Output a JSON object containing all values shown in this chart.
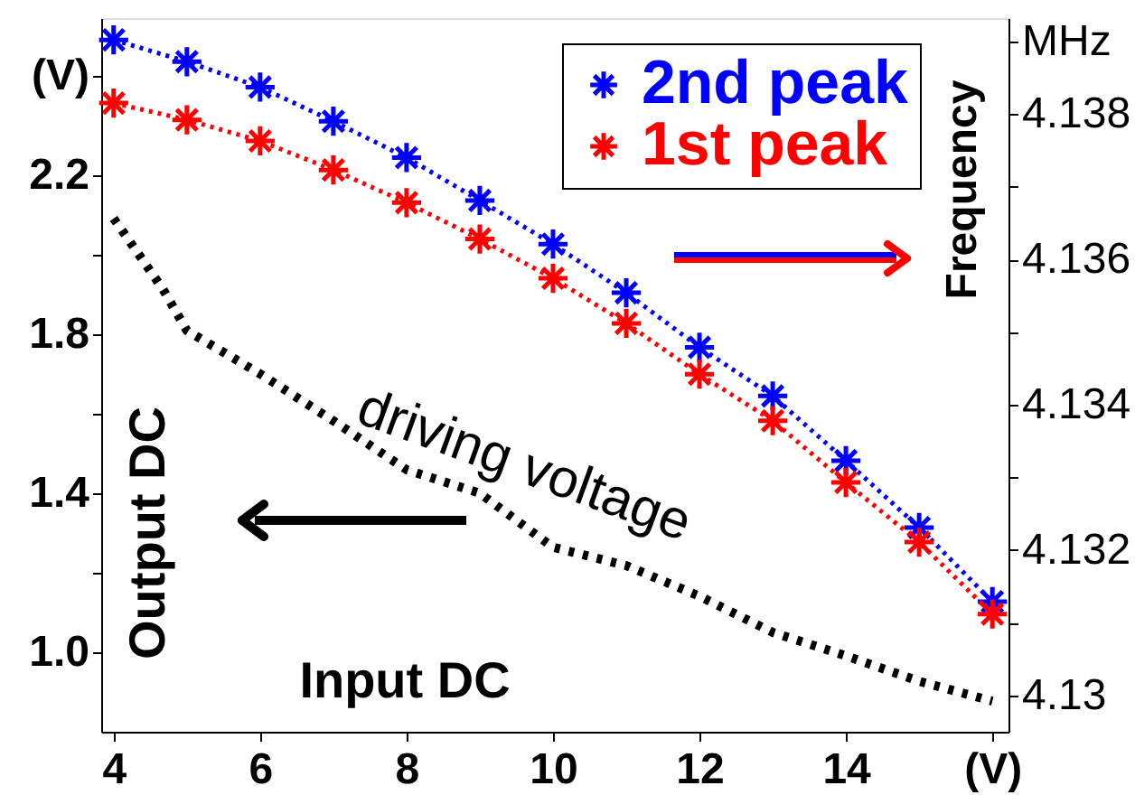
{
  "chart_data": {
    "type": "line",
    "x": [
      4,
      5,
      6,
      7,
      8,
      9,
      10,
      11,
      12,
      13,
      14,
      15,
      16
    ],
    "xlim": [
      3.83,
      16.22
    ],
    "xticks": [
      4,
      6,
      8,
      10,
      12,
      14,
      {
        "value": 16,
        "label": "(V)"
      }
    ],
    "ylim": [
      0.8,
      2.595
    ],
    "yticks": [
      {
        "value": 1,
        "label": "1.0"
      },
      {
        "value": 1.2,
        "label": null
      },
      1.4,
      {
        "value": 1.6,
        "label": null
      },
      1.8,
      {
        "value": 2,
        "label": null
      },
      2.2,
      {
        "value": 2.45,
        "label": "(V)"
      }
    ],
    "y2lim": [
      4.1295,
      4.13932
    ],
    "y2ticks": [
      4.13,
      {
        "value": 4.131,
        "label": null
      },
      4.132,
      {
        "value": 4.133,
        "label": null
      },
      4.134,
      {
        "value": 4.135,
        "label": null
      },
      4.136,
      {
        "value": 4.137,
        "label": null
      },
      4.138,
      {
        "value": 4.139,
        "label": "MHz"
      }
    ],
    "xlabel": "Input DC",
    "ylabel": "Output DC",
    "y2label": "Frequency",
    "annotations": [
      "driving voltage"
    ],
    "series": [
      {
        "name": "2nd peak",
        "color": "#0000ff",
        "axis": "y2",
        "marker": "cross",
        "line_style": "dotted",
        "values": [
          4.13902,
          4.13872,
          4.13837,
          4.1379,
          4.1374,
          4.13681,
          4.13621,
          4.13554,
          4.13479,
          4.13412,
          4.13323,
          4.13231,
          4.13129
        ]
      },
      {
        "name": "1st peak",
        "color": "#ff0000",
        "axis": "y2",
        "marker": "cross",
        "line_style": "dotted",
        "values": [
          4.13815,
          4.13792,
          4.13763,
          4.13723,
          4.13678,
          4.13628,
          4.13574,
          4.13512,
          4.13442,
          4.13378,
          4.13293,
          4.13211,
          4.13112
        ]
      },
      {
        "color": "#000000",
        "axis": "y",
        "marker": "none",
        "line_style": "dotted",
        "x": [
          4,
          4.67,
          5,
          6,
          7,
          8,
          9,
          10,
          11,
          12,
          13,
          14,
          15,
          16
        ],
        "values": [
          2.091,
          1.914,
          1.809,
          1.7,
          1.582,
          1.459,
          1.4,
          1.264,
          1.218,
          1.141,
          1.05,
          0.991,
          0.927,
          0.877
        ]
      }
    ],
    "grid": false,
    "legend": "top right"
  }
}
